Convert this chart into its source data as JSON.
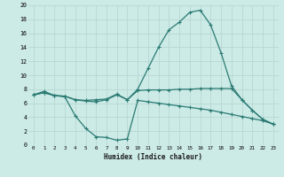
{
  "xlabel": "Humidex (Indice chaleur)",
  "ylabel": "",
  "bg_color": "#cceae6",
  "line_color": "#2a7b73",
  "grid_color": "#b8d8d4",
  "xlim": [
    -0.5,
    23.5
  ],
  "ylim": [
    0,
    20
  ],
  "line1_x": [
    0,
    1,
    2,
    3,
    4,
    5,
    6,
    7,
    8,
    9,
    10,
    11,
    12,
    13,
    14,
    15,
    16,
    17,
    18,
    19,
    20,
    21,
    22,
    23
  ],
  "line1_y": [
    7.2,
    7.7,
    7.1,
    7.0,
    6.5,
    6.4,
    6.5,
    6.6,
    7.3,
    6.5,
    8.0,
    11.0,
    14.0,
    16.5,
    17.6,
    19.0,
    19.3,
    17.2,
    13.2,
    8.5,
    6.5,
    5.0,
    3.7,
    3.0
  ],
  "line2_x": [
    0,
    1,
    2,
    3,
    4,
    5,
    6,
    7,
    8,
    9,
    10,
    11,
    12,
    13,
    14,
    15,
    16,
    17,
    18,
    19,
    20,
    21,
    22,
    23
  ],
  "line2_y": [
    7.2,
    7.5,
    7.1,
    7.0,
    6.5,
    6.3,
    6.2,
    6.5,
    7.2,
    6.5,
    7.8,
    7.9,
    7.9,
    7.9,
    8.0,
    8.0,
    8.1,
    8.1,
    8.1,
    8.1,
    6.5,
    5.0,
    3.7,
    3.0
  ],
  "line3_x": [
    0,
    1,
    2,
    3,
    4,
    5,
    6,
    7,
    8,
    9,
    10,
    11,
    12,
    13,
    14,
    15,
    16,
    17,
    18,
    19,
    20,
    21,
    22,
    23
  ],
  "line3_y": [
    7.2,
    7.5,
    7.1,
    6.9,
    4.2,
    2.4,
    1.2,
    1.1,
    0.7,
    0.9,
    6.4,
    6.2,
    6.0,
    5.8,
    5.6,
    5.4,
    5.2,
    5.0,
    4.7,
    4.4,
    4.1,
    3.8,
    3.5,
    3.0
  ]
}
